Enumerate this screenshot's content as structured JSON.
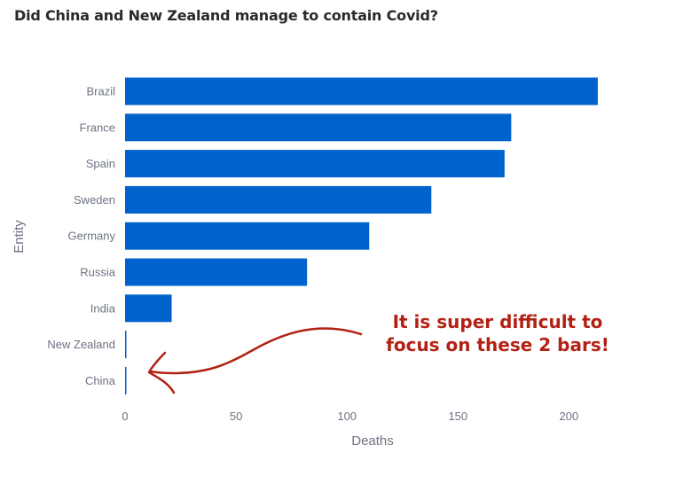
{
  "title": "Did China and New Zealand manage to contain Covid?",
  "colors": {
    "bar": "#0062cc",
    "annotation": "#b22214",
    "text": "#6b7280"
  },
  "annotation": {
    "line1": "It is super difficult to",
    "line2": "focus on these 2 bars!"
  },
  "chart_data": {
    "type": "bar",
    "orientation": "horizontal",
    "title": "Did China and New Zealand manage to contain Covid?",
    "xlabel": "Deaths",
    "ylabel": "Entity",
    "categories": [
      "Brazil",
      "France",
      "Spain",
      "Sweden",
      "Germany",
      "Russia",
      "India",
      "New Zealand",
      "China"
    ],
    "values": [
      213,
      174,
      171,
      138,
      110,
      82,
      21,
      0.5,
      0.3
    ],
    "xlim": [
      0,
      225
    ],
    "xticks": [
      0,
      50,
      100,
      150,
      200
    ],
    "grid": false,
    "legend": "none"
  }
}
